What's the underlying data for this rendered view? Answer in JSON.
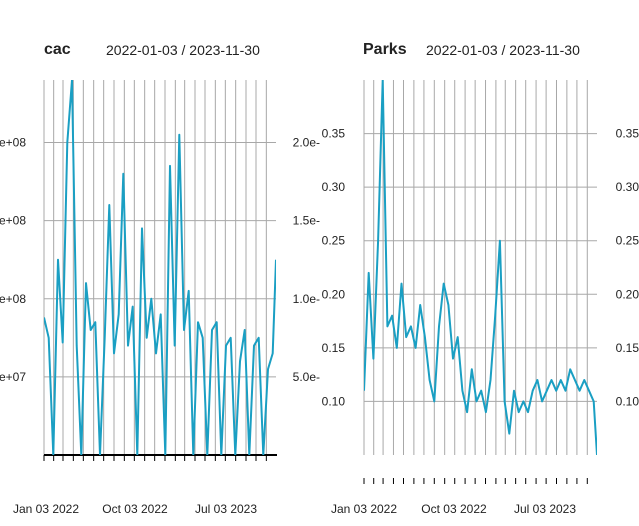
{
  "panels": [
    {
      "title": "cac",
      "range": "2022-01-03 / 2023-11-30"
    },
    {
      "title": "Parks",
      "range": "2022-01-03 / 2023-11-30"
    }
  ],
  "colors": {
    "line": "#1a9fc3",
    "grid": "#a8a8a8",
    "axis": "#000000"
  },
  "chart_data": [
    {
      "type": "line",
      "title": "cac",
      "subtitle": "2022-01-03 / 2023-11-30",
      "x_range": [
        "2022-01-03",
        "2023-11-30"
      ],
      "ylim": [
        0,
        240000000
      ],
      "y_ticks_left": [
        "e+07",
        "e+08",
        "e+08",
        "e+08"
      ],
      "y_ticks_left_values": [
        50000000,
        100000000,
        150000000,
        200000000
      ],
      "y_ticks_right": [
        "5.0e-",
        "1.0e-",
        "1.5e-",
        "2.0e-"
      ],
      "y_ticks_right_values": [
        50000000,
        100000000,
        150000000,
        200000000
      ],
      "x_tick_labels": [
        "Jan 03 2022",
        "Oct 03 2022",
        "Jul 03 2023"
      ],
      "series": [
        {
          "x": [
            "2022-01-03",
            "2022-01-17",
            "2022-01-31",
            "2022-02-14",
            "2022-02-28",
            "2022-03-14",
            "2022-03-28",
            "2022-04-11",
            "2022-04-25",
            "2022-05-09",
            "2022-05-23",
            "2022-06-06",
            "2022-06-20",
            "2022-07-04",
            "2022-07-18",
            "2022-08-01",
            "2022-08-15",
            "2022-08-29",
            "2022-09-12",
            "2022-09-26",
            "2022-10-10",
            "2022-10-24",
            "2022-11-07",
            "2022-11-21",
            "2022-12-05",
            "2022-12-19",
            "2023-01-02",
            "2023-01-16",
            "2023-01-30",
            "2023-02-13",
            "2023-02-27",
            "2023-03-13",
            "2023-03-27",
            "2023-04-10",
            "2023-04-24",
            "2023-05-08",
            "2023-05-22",
            "2023-06-05",
            "2023-06-19",
            "2023-07-03",
            "2023-07-17",
            "2023-07-31",
            "2023-08-14",
            "2023-08-28",
            "2023-09-11",
            "2023-09-25",
            "2023-10-09",
            "2023-10-23",
            "2023-11-06",
            "2023-11-20",
            "2023-11-30"
          ],
          "values": [
            88000000,
            75000000,
            0,
            125000000,
            72000000,
            200000000,
            240000000,
            70000000,
            0,
            110000000,
            80000000,
            85000000,
            0,
            75000000,
            160000000,
            65000000,
            90000000,
            180000000,
            70000000,
            95000000,
            0,
            145000000,
            75000000,
            100000000,
            65000000,
            90000000,
            0,
            185000000,
            70000000,
            205000000,
            80000000,
            105000000,
            0,
            85000000,
            75000000,
            0,
            80000000,
            85000000,
            0,
            70000000,
            75000000,
            0,
            60000000,
            80000000,
            0,
            70000000,
            75000000,
            0,
            55000000,
            65000000,
            125000000
          ]
        }
      ]
    },
    {
      "type": "line",
      "title": "Parks",
      "subtitle": "2022-01-03 / 2023-11-30",
      "x_range": [
        "2022-01-03",
        "2023-11-30"
      ],
      "ylim": [
        0.05,
        0.4
      ],
      "y_ticks": [
        "0.10",
        "0.15",
        "0.20",
        "0.25",
        "0.30",
        "0.35"
      ],
      "y_tick_values": [
        0.1,
        0.15,
        0.2,
        0.25,
        0.3,
        0.35
      ],
      "x_tick_labels": [
        "Jan 03 2022",
        "Oct 03 2022",
        "Jul 03 2023"
      ],
      "series": [
        {
          "x": [
            "2022-01-03",
            "2022-01-17",
            "2022-01-31",
            "2022-02-14",
            "2022-02-28",
            "2022-03-14",
            "2022-03-28",
            "2022-04-11",
            "2022-04-25",
            "2022-05-09",
            "2022-05-23",
            "2022-06-06",
            "2022-06-20",
            "2022-07-04",
            "2022-07-18",
            "2022-08-01",
            "2022-08-15",
            "2022-08-29",
            "2022-09-12",
            "2022-09-26",
            "2022-10-10",
            "2022-10-24",
            "2022-11-07",
            "2022-11-21",
            "2022-12-05",
            "2022-12-19",
            "2023-01-02",
            "2023-01-16",
            "2023-01-30",
            "2023-02-13",
            "2023-02-27",
            "2023-03-13",
            "2023-03-27",
            "2023-04-10",
            "2023-04-24",
            "2023-05-08",
            "2023-05-22",
            "2023-06-05",
            "2023-06-19",
            "2023-07-03",
            "2023-07-17",
            "2023-07-31",
            "2023-08-14",
            "2023-08-28",
            "2023-09-11",
            "2023-09-25",
            "2023-10-09",
            "2023-10-23",
            "2023-11-06",
            "2023-11-20",
            "2023-11-30"
          ],
          "values": [
            0.11,
            0.22,
            0.14,
            0.25,
            0.4,
            0.17,
            0.18,
            0.15,
            0.21,
            0.16,
            0.17,
            0.15,
            0.19,
            0.16,
            0.12,
            0.1,
            0.17,
            0.21,
            0.19,
            0.14,
            0.16,
            0.11,
            0.09,
            0.13,
            0.1,
            0.11,
            0.09,
            0.12,
            0.18,
            0.25,
            0.1,
            0.07,
            0.11,
            0.09,
            0.1,
            0.09,
            0.11,
            0.12,
            0.1,
            0.11,
            0.12,
            0.11,
            0.12,
            0.11,
            0.13,
            0.12,
            0.11,
            0.12,
            0.11,
            0.1,
            0.05
          ]
        }
      ]
    }
  ]
}
